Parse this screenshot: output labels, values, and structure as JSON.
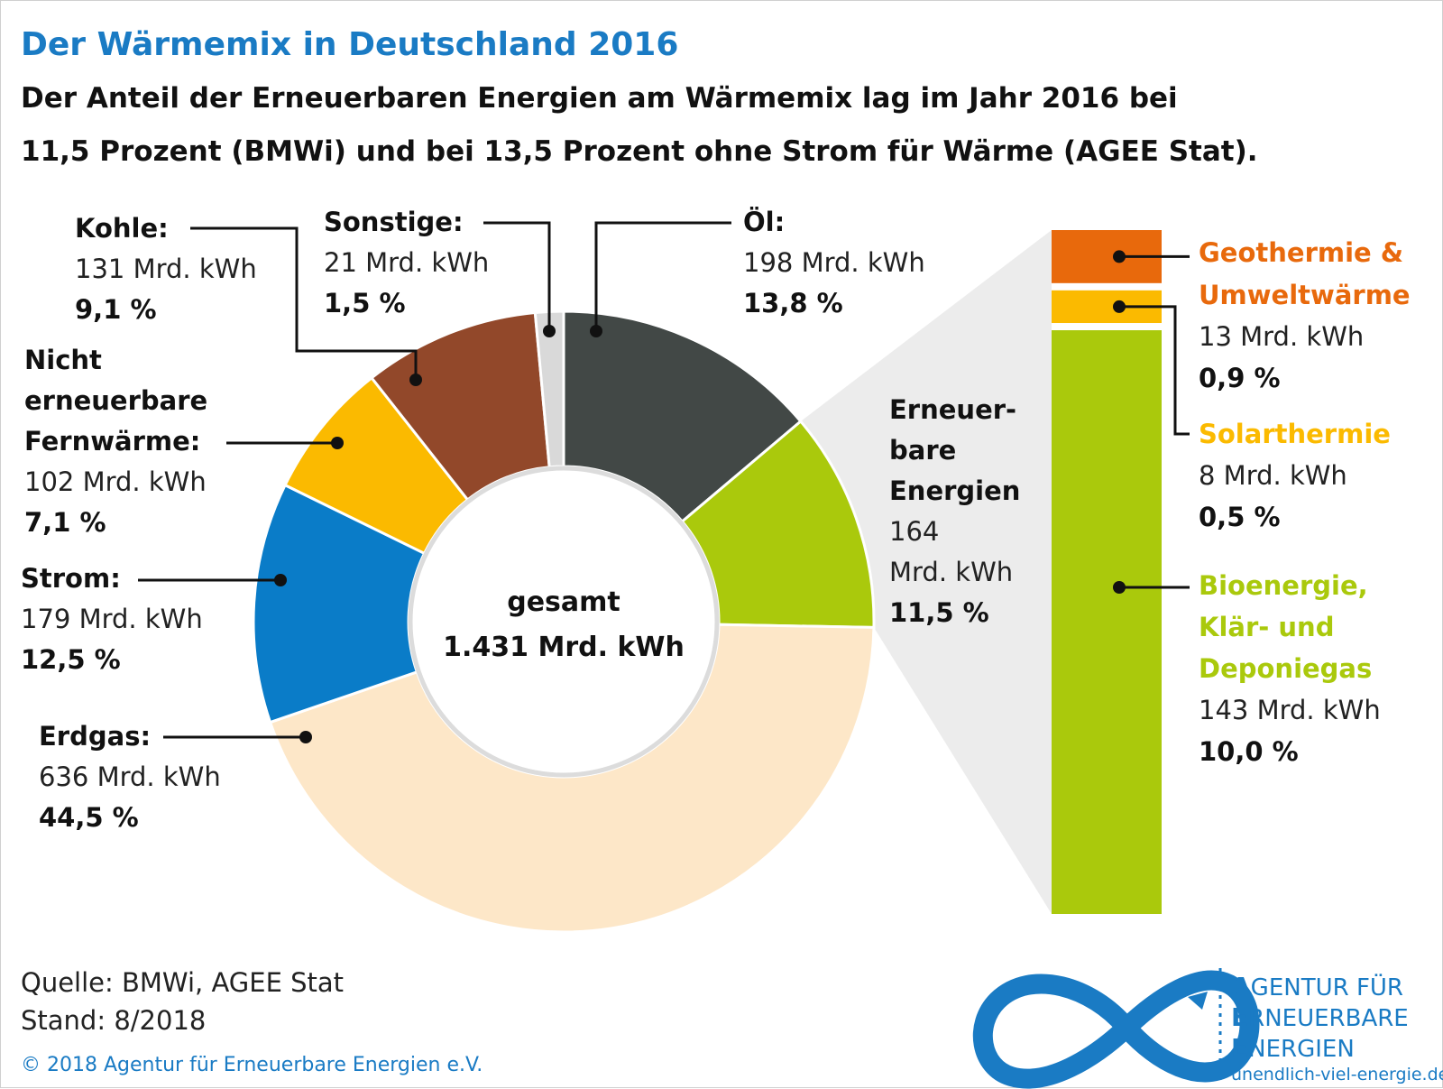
{
  "title": "Der Wärmemix in Deutschland 2016",
  "subtitle_line1": "Der Anteil der Erneuerbaren Energien am Wärmemix  lag im Jahr 2016 bei",
  "subtitle_line2": "11,5 Prozent (BMWi) und bei 13,5 Prozent ohne Strom für Wärme (AGEE Stat).",
  "center_label": "gesamt",
  "center_value": "1.431 Mrd. kWh",
  "source_line1": "Quelle: BMWi, AGEE Stat",
  "source_line2": "Stand: 8/2018",
  "copyright": "© 2018 Agentur für Erneuerbare Energien e.V.",
  "logo": {
    "line1_initial": "A",
    "line1_rest": "GENTUR FÜR",
    "line2_initial": "E",
    "line2_rest": "RNEUERBARE",
    "line3_initial": "E",
    "line3_rest": "NERGIEN",
    "url": "unendlich-viel-energie.de",
    "color": "#1a7bc4"
  },
  "chart_data": [
    {
      "type": "pie",
      "total": 1431,
      "unit": "Mrd. kWh",
      "slices": [
        {
          "name": "Öl:",
          "value": 198,
          "value_label": "198 Mrd. kWh",
          "percent": 13.8,
          "percent_label": "13,8 %",
          "color": "#424846"
        },
        {
          "name": "Erneuer-bare Energien",
          "name_lines": [
            "Erneuer-",
            "bare",
            "Energien"
          ],
          "value": 164,
          "value_lines": [
            "164",
            "Mrd. kWh"
          ],
          "percent": 11.5,
          "percent_label": "11,5 %",
          "color": "#aac90c"
        },
        {
          "name": "Erdgas:",
          "value": 636,
          "value_label": "636 Mrd. kWh",
          "percent": 44.5,
          "percent_label": "44,5 %",
          "color": "#fde7c8"
        },
        {
          "name": "Strom:",
          "value": 179,
          "value_label": "179 Mrd. kWh",
          "percent": 12.5,
          "percent_label": "12,5 %",
          "color": "#0a7cc8"
        },
        {
          "name": "Nicht erneuerbare Fernwärme:",
          "name_lines": [
            "Nicht",
            "erneuerbare",
            "Fernwärme:"
          ],
          "value": 102,
          "value_label": "102 Mrd. kWh",
          "percent": 7.1,
          "percent_label": "7,1 %",
          "color": "#fbba00"
        },
        {
          "name": "Kohle:",
          "value": 131,
          "value_label": "131 Mrd. kWh",
          "percent": 9.1,
          "percent_label": "9,1 %",
          "color": "#92482a"
        },
        {
          "name": "Sonstige:",
          "value": 21,
          "value_label": "21 Mrd. kWh",
          "percent": 1.5,
          "percent_label": "1,5 %",
          "color": "#d9d9d9"
        }
      ]
    },
    {
      "type": "bar",
      "stacked": true,
      "segments": [
        {
          "name": "Geothermie & Umweltwärme",
          "name_lines": [
            "Geothermie &",
            "Umweltwärme"
          ],
          "value": 13,
          "value_label": "13 Mrd. kWh",
          "percent": 0.9,
          "percent_label": "0,9 %",
          "color": "#e8690c"
        },
        {
          "name": "Solarthermie",
          "name_lines": [
            "Solarthermie"
          ],
          "value": 8,
          "value_label": "8 Mrd. kWh",
          "percent": 0.5,
          "percent_label": "0,5 %",
          "color": "#fbba00"
        },
        {
          "name": "Bioenergie, Klär- und Deponiegas",
          "name_lines": [
            "Bioenergie,",
            "Klär- und",
            "Deponiegas"
          ],
          "value": 143,
          "value_label": "143 Mrd. kWh",
          "percent": 10.0,
          "percent_label": "10,0 %",
          "color": "#aac90c"
        }
      ]
    }
  ]
}
